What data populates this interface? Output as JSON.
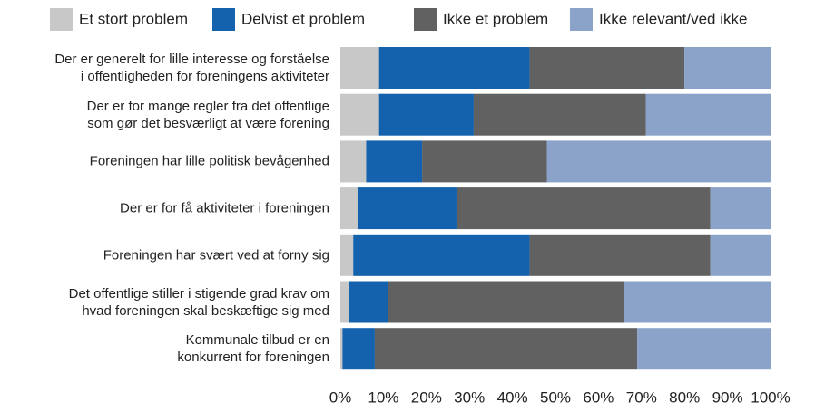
{
  "chart_data": {
    "type": "stacked_barh",
    "categories": [
      "Der er generelt for lille interesse og forståelse\ni offentligheden for foreningens aktiviteter",
      "Der er for mange regler fra det offentlige\nsom gør det besværligt at være forening",
      "Foreningen har lille politisk bevågenhed",
      "Der er for få aktiviteter i foreningen",
      "Foreningen har svært ved at forny sig",
      "Det offentlige stiller i stigende grad krav om\nhvad foreningen skal beskæftige sig med",
      "Kommunale tilbud er en\nkonkurrent for foreningen"
    ],
    "series": [
      {
        "name": "Et stort problem",
        "color": "#c8c8c8",
        "values": [
          9,
          9,
          6,
          4,
          3,
          2,
          0.5
        ]
      },
      {
        "name": "Delvist et problem",
        "color": "#1461ad",
        "values": [
          35,
          22,
          13,
          23,
          41,
          9,
          7.5
        ]
      },
      {
        "name": "Ikke et problem",
        "color": "#616161",
        "values": [
          36,
          40,
          29,
          59,
          42,
          55,
          61
        ]
      },
      {
        "name": "Ikke relevant/ved ikke",
        "color": "#8ca3c9",
        "values": [
          20,
          29,
          52,
          14,
          14,
          34,
          31
        ]
      }
    ],
    "xlim": [
      0,
      100
    ],
    "xticks": [
      {
        "value": 0,
        "label": "0%"
      },
      {
        "value": 10,
        "label": "10%"
      },
      {
        "value": 20,
        "label": "20%"
      },
      {
        "value": 30,
        "label": "30%"
      },
      {
        "value": 40,
        "label": "40%"
      },
      {
        "value": 50,
        "label": "50%"
      },
      {
        "value": 60,
        "label": "60%"
      },
      {
        "value": 70,
        "label": "70%"
      },
      {
        "value": 80,
        "label": "80%"
      },
      {
        "value": 90,
        "label": "90%"
      },
      {
        "value": 100,
        "label": "100%"
      }
    ]
  }
}
